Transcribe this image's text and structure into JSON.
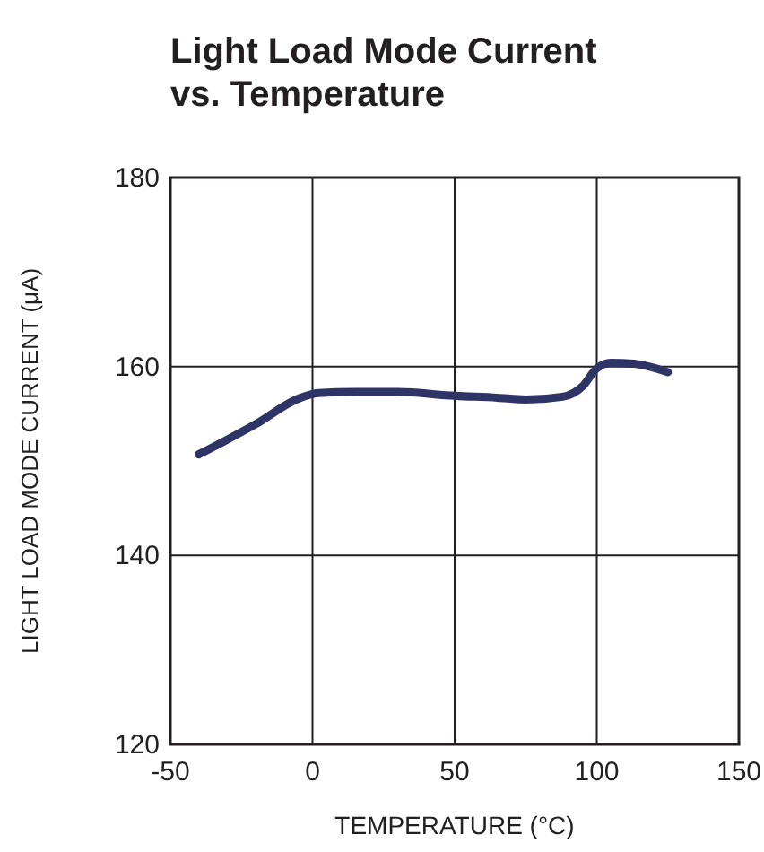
{
  "chart_data": {
    "type": "line",
    "title": "Light Load Mode Current vs. Temperature",
    "xlabel": "TEMPERATURE (°C)",
    "ylabel": "LIGHT LOAD MODE CURRENT (μA)",
    "x": [
      -40,
      -20,
      -5,
      2,
      15,
      30,
      50,
      65,
      75,
      88,
      95,
      100,
      105,
      113,
      125
    ],
    "series": [
      {
        "color": "#2e3466",
        "values": [
          150.7,
          153.9,
          156.6,
          157.2,
          157.3,
          157.3,
          156.9,
          156.7,
          156.5,
          156.8,
          157.9,
          159.8,
          160.4,
          160.3,
          159.4
        ]
      }
    ],
    "xlim": [
      -50,
      150
    ],
    "xticks": [
      -50,
      0,
      50,
      100,
      150
    ],
    "ylim": [
      120,
      180
    ],
    "yticks": [
      120,
      140,
      160,
      180
    ],
    "grid": true,
    "marker": "none",
    "line_style": "solid"
  }
}
